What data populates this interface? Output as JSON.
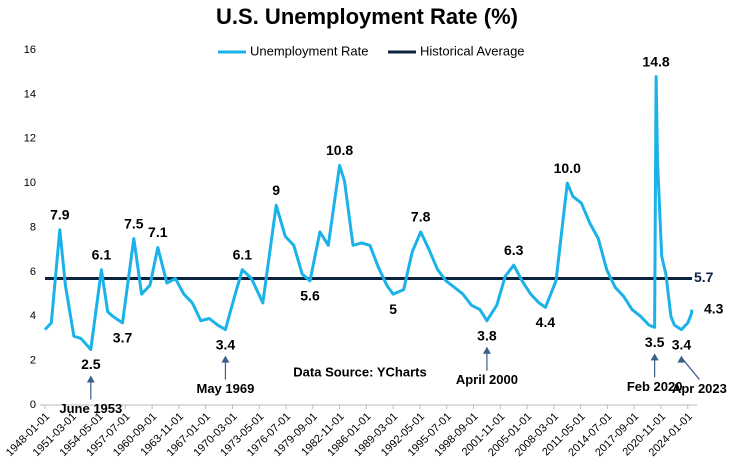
{
  "chart_data": {
    "type": "line",
    "title": "U.S. Unemployment Rate (%)",
    "source": "Data Source: YCharts",
    "x": [
      "1948-01-01",
      "1948-10-01",
      "1949-10-01",
      "1950-06-01",
      "1951-06-01",
      "1952-04-01",
      "1953-06-01",
      "1954-09-01",
      "1955-06-01",
      "1956-01-01",
      "1957-03-01",
      "1958-07-01",
      "1959-06-01",
      "1960-06-01",
      "1961-05-01",
      "1962-06-01",
      "1963-06-01",
      "1964-06-01",
      "1965-06-01",
      "1966-06-01",
      "1967-06-01",
      "1968-06-01",
      "1969-05-01",
      "1970-06-01",
      "1971-05-01",
      "1972-06-01",
      "1973-10-01",
      "1975-05-01",
      "1976-06-01",
      "1977-06-01",
      "1978-06-01",
      "1979-05-01",
      "1980-07-01",
      "1981-07-01",
      "1982-11-01",
      "1983-06-01",
      "1984-06-01",
      "1985-06-01",
      "1986-06-01",
      "1987-06-01",
      "1988-06-01",
      "1989-03-01",
      "1990-06-01",
      "1991-06-01",
      "1992-06-01",
      "1993-06-01",
      "1994-06-01",
      "1995-06-01",
      "1996-06-01",
      "1997-06-01",
      "1998-06-01",
      "1999-06-01",
      "2000-04-01",
      "2001-06-01",
      "2002-06-01",
      "2003-06-01",
      "2004-06-01",
      "2005-06-01",
      "2006-06-01",
      "2007-03-01",
      "2008-06-01",
      "2009-10-01",
      "2010-06-01",
      "2011-06-01",
      "2012-06-01",
      "2013-06-01",
      "2014-06-01",
      "2015-06-01",
      "2016-06-01",
      "2017-06-01",
      "2018-06-01",
      "2019-06-01",
      "2020-02-01",
      "2020-04-01",
      "2020-06-01",
      "2020-12-01",
      "2021-06-01",
      "2022-01-01",
      "2022-06-01",
      "2023-04-01",
      "2024-01-01",
      "2024-06-01",
      "2024-07-01"
    ],
    "series": [
      {
        "name": "Unemployment Rate",
        "color": "#1ab2e8",
        "values": [
          3.4,
          3.7,
          7.9,
          5.4,
          3.1,
          3.0,
          2.5,
          6.1,
          4.2,
          4.0,
          3.7,
          7.5,
          5.0,
          5.4,
          7.1,
          5.5,
          5.7,
          5.0,
          4.6,
          3.8,
          3.9,
          3.6,
          3.4,
          4.9,
          6.1,
          5.7,
          4.6,
          9,
          7.6,
          7.2,
          5.9,
          5.6,
          7.8,
          7.2,
          10.8,
          10.1,
          7.2,
          7.3,
          7.2,
          6.2,
          5.4,
          5,
          5.2,
          6.9,
          7.8,
          7.0,
          6.1,
          5.6,
          5.3,
          5.0,
          4.5,
          4.3,
          3.8,
          4.5,
          5.8,
          6.3,
          5.6,
          5.0,
          4.6,
          4.4,
          5.6,
          10.0,
          9.4,
          9.1,
          8.2,
          7.5,
          6.1,
          5.3,
          4.9,
          4.3,
          4.0,
          3.6,
          3.5,
          14.8,
          11.0,
          6.7,
          5.9,
          4.0,
          3.6,
          3.4,
          3.7,
          4.1,
          4.3
        ]
      }
    ],
    "average": {
      "name": "Historical Average",
      "color": "#0c2340",
      "value": 5.7
    },
    "annotations": [
      {
        "x": "1949-10-01",
        "value": 7.9
      },
      {
        "x": "1953-06-01",
        "value": 2.5,
        "note": "June 1953"
      },
      {
        "x": "1954-09-01",
        "value": 6.1
      },
      {
        "x": "1957-03-01",
        "value": 3.7
      },
      {
        "x": "1958-07-01",
        "value": 7.5
      },
      {
        "x": "1961-05-01",
        "value": 7.1
      },
      {
        "x": "1969-05-01",
        "value": 3.4,
        "note": "May 1969"
      },
      {
        "x": "1971-05-01",
        "value": 6.1
      },
      {
        "x": "1975-05-01",
        "value": 9
      },
      {
        "x": "1979-05-01",
        "value": 5.6
      },
      {
        "x": "1982-11-01",
        "value": 10.8
      },
      {
        "x": "1989-03-01",
        "value": 5
      },
      {
        "x": "1992-06-01",
        "value": 7.8
      },
      {
        "x": "2000-04-01",
        "value": 3.8,
        "note": "April 2000"
      },
      {
        "x": "2003-06-01",
        "value": 6.3
      },
      {
        "x": "2007-03-01",
        "value": 4.4
      },
      {
        "x": "2009-10-01",
        "value": 10.0,
        "label": "10.0"
      },
      {
        "x": "2020-02-01",
        "value": 3.5,
        "note": "Feb 2020"
      },
      {
        "x": "2020-04-01",
        "value": 14.8
      },
      {
        "x": "2023-04-01",
        "value": 3.4,
        "note": "Apr 2023"
      },
      {
        "x": "2024-07-01",
        "value": 4.3
      }
    ],
    "xlim": [
      "1948-01-01",
      "2024-07-01"
    ],
    "xticks": [
      "1948-01-01",
      "1951-03-01",
      "1954-05-01",
      "1957-07-01",
      "1960-09-01",
      "1963-11-01",
      "1967-01-01",
      "1970-03-01",
      "1973-05-01",
      "1976-07-01",
      "1979-09-01",
      "1982-11-01",
      "1986-01-01",
      "1989-03-01",
      "1992-05-01",
      "1995-07-01",
      "1998-09-01",
      "2001-11-01",
      "2005-01-01",
      "2008-03-01",
      "2011-05-01",
      "2014-07-01",
      "2017-09-01",
      "2020-11-01",
      "2024-01-01"
    ],
    "ylim": [
      0,
      16
    ],
    "yticks": [
      0,
      2,
      4,
      6,
      8,
      10,
      12,
      14,
      16
    ],
    "grid": false,
    "legend": "top"
  }
}
